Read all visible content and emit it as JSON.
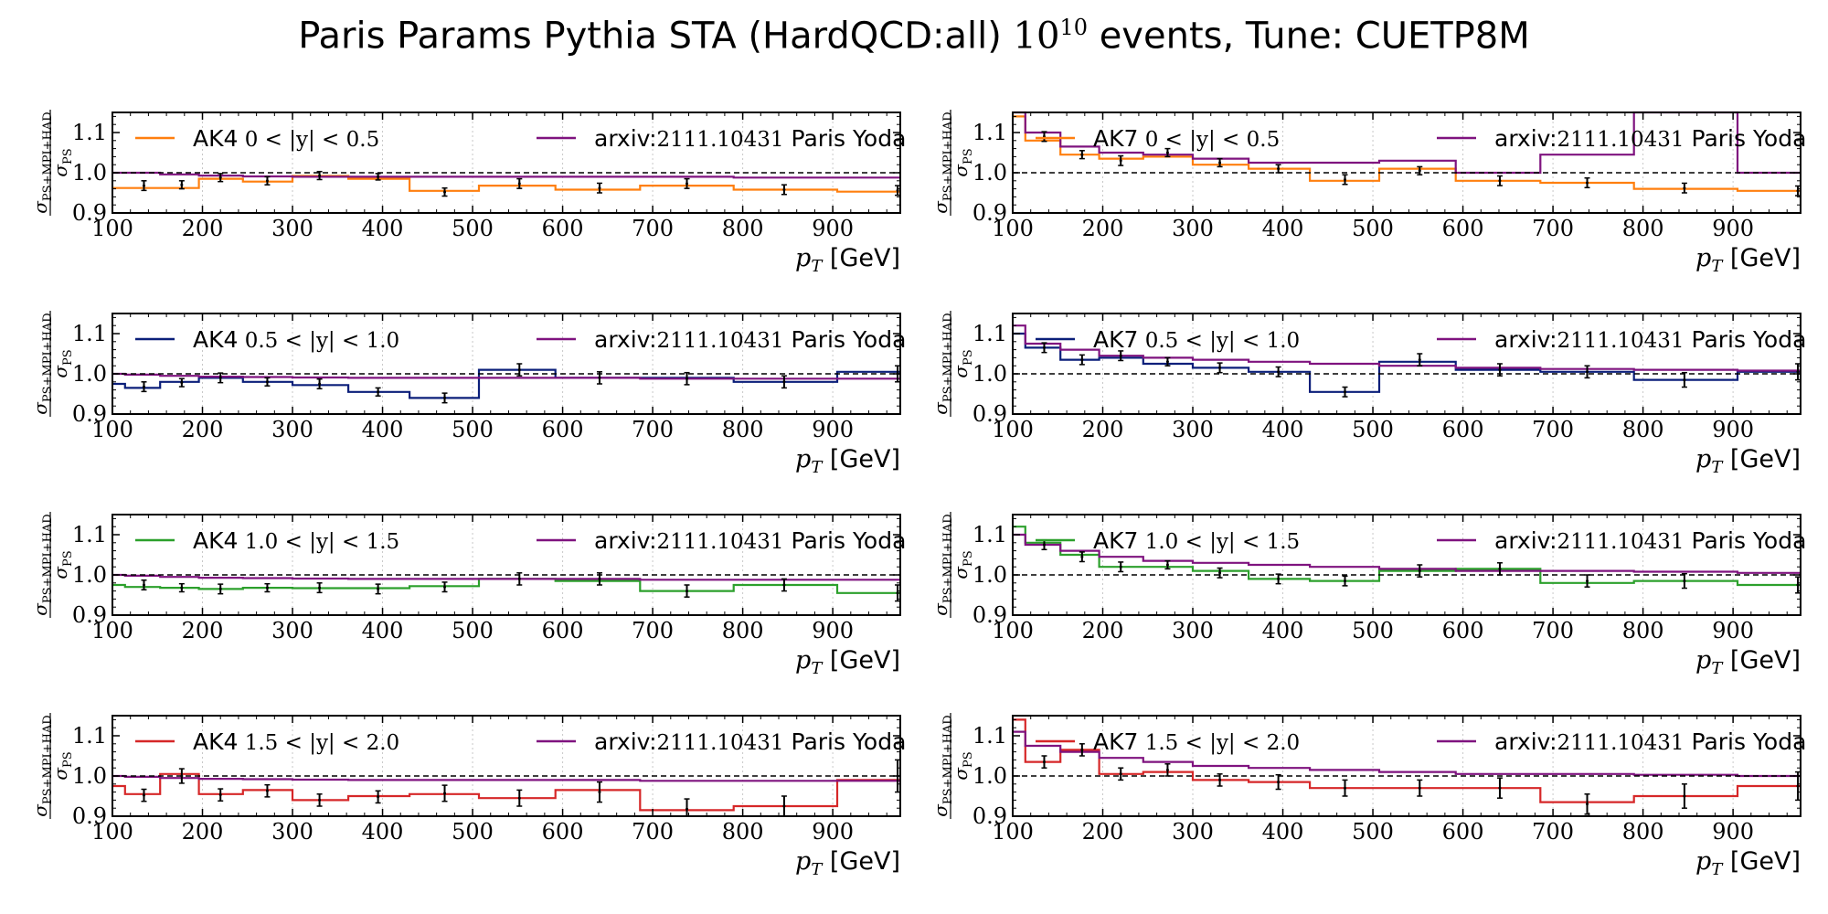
{
  "title": {
    "prefix": "Paris Params Pythia STA (HardQCD:all) ",
    "base": "10",
    "exponent": "10",
    "suffix": " events, Tune: CUETP8M"
  },
  "colors": {
    "yoda": "#7f137f",
    "y0": "#ff7f0e",
    "y1": "#0b1f7a",
    "y2": "#2ca02c",
    "y3": "#d62728",
    "errorbar": "#000000",
    "reference_line": "#000000"
  },
  "chart_data": [
    {
      "type": "line",
      "step": true,
      "xlim": [
        100,
        975
      ],
      "ylim": [
        0.9,
        1.15
      ],
      "ytick_labels": [
        "0.9",
        "1.0",
        "1.1"
      ],
      "xtick_labels": [
        "100",
        "200",
        "300",
        "400",
        "500",
        "600",
        "700",
        "800",
        "900"
      ],
      "xlabel": "p_T [GeV]",
      "ylabel": "σ_PS+MPI+HAD / σ_PS",
      "legend_left": {
        "label": "AK4",
        "range": "0 < |y| < 0.5"
      },
      "legend_right": {
        "label": "arxiv:",
        "number": "2111.10431",
        "rest": " Paris Yoda"
      },
      "reference": 1.0,
      "bin_edges": [
        100,
        153,
        196,
        245,
        300,
        362,
        430,
        507,
        592,
        686,
        790,
        905,
        975
      ],
      "series": [
        {
          "role": "main",
          "color_key": "y0",
          "values": [
            0.962,
            0.962,
            0.985,
            0.978,
            0.992,
            0.985,
            0.955,
            0.968,
            0.958,
            0.968,
            0.958,
            0.953
          ]
        },
        {
          "role": "yoda",
          "color_key": "yoda",
          "values": [
            1.0,
            0.996,
            0.993,
            0.991,
            0.99,
            0.99,
            0.99,
            0.99,
            0.99,
            0.99,
            0.988,
            0.988
          ]
        }
      ],
      "points": {
        "x": [
          135,
          177,
          220,
          272,
          330,
          395,
          469,
          552,
          641,
          738,
          846,
          972
        ],
        "y": [
          0.968,
          0.97,
          0.988,
          0.98,
          0.993,
          0.99,
          0.952,
          0.973,
          0.962,
          0.973,
          0.958,
          0.956
        ],
        "err": [
          0.012,
          0.01,
          0.01,
          0.01,
          0.01,
          0.008,
          0.01,
          0.012,
          0.012,
          0.012,
          0.012,
          0.012
        ]
      }
    },
    {
      "type": "line",
      "step": true,
      "xlim": [
        100,
        975
      ],
      "ylim": [
        0.9,
        1.15
      ],
      "ytick_labels": [
        "0.9",
        "1.0",
        "1.1"
      ],
      "xtick_labels": [
        "100",
        "200",
        "300",
        "400",
        "500",
        "600",
        "700",
        "800",
        "900"
      ],
      "xlabel": "p_T [GeV]",
      "ylabel": "σ_PS+MPI+HAD / σ_PS",
      "legend_left": {
        "label": "AK7",
        "range": "0 < |y| < 0.5"
      },
      "legend_right": {
        "label": "arxiv:",
        "number": "2111.10431",
        "rest": " Paris Yoda"
      },
      "reference": 1.0,
      "bin_edges": [
        100,
        114,
        153,
        196,
        245,
        300,
        362,
        430,
        507,
        592,
        686,
        790,
        905,
        975
      ],
      "series": [
        {
          "role": "main",
          "color_key": "y0",
          "values": [
            1.14,
            1.08,
            1.045,
            1.035,
            1.04,
            1.02,
            1.01,
            0.98,
            1.01,
            0.98,
            0.975,
            0.96,
            0.955
          ]
        },
        {
          "role": "yoda",
          "color_key": "yoda",
          "values": [
            1.15,
            1.1,
            1.065,
            1.05,
            1.045,
            1.035,
            1.025,
            1.025,
            1.03,
            1.0,
            1.045,
            1.15,
            1.0
          ]
        }
      ],
      "points": {
        "x": [
          135,
          177,
          220,
          272,
          330,
          395,
          469,
          552,
          641,
          738,
          846,
          972
        ],
        "y": [
          1.09,
          1.045,
          1.03,
          1.05,
          1.025,
          1.01,
          0.983,
          1.005,
          0.98,
          0.975,
          0.962,
          0.955
        ],
        "err": [
          0.012,
          0.01,
          0.012,
          0.01,
          0.01,
          0.01,
          0.012,
          0.01,
          0.012,
          0.012,
          0.012,
          0.012
        ]
      }
    },
    {
      "type": "line",
      "step": true,
      "xlim": [
        100,
        975
      ],
      "ylim": [
        0.9,
        1.15
      ],
      "ytick_labels": [
        "0.9",
        "1.0",
        "1.1"
      ],
      "xtick_labels": [
        "100",
        "200",
        "300",
        "400",
        "500",
        "600",
        "700",
        "800",
        "900"
      ],
      "xlabel": "p_T [GeV]",
      "ylabel": "σ_PS+MPI+HAD / σ_PS",
      "legend_left": {
        "label": "AK4",
        "range": "0.5 < |y| < 1.0"
      },
      "legend_right": {
        "label": "arxiv:",
        "number": "2111.10431",
        "rest": " Paris Yoda"
      },
      "reference": 1.0,
      "bin_edges": [
        100,
        114,
        153,
        196,
        245,
        300,
        362,
        430,
        507,
        592,
        686,
        790,
        905,
        975
      ],
      "series": [
        {
          "role": "main",
          "color_key": "y1",
          "values": [
            0.975,
            0.965,
            0.98,
            0.99,
            0.98,
            0.972,
            0.955,
            0.94,
            1.01,
            0.99,
            0.99,
            0.98,
            1.005
          ]
        },
        {
          "role": "yoda",
          "color_key": "yoda",
          "values": [
            1.0,
            0.998,
            0.995,
            0.993,
            0.992,
            0.991,
            0.99,
            0.99,
            0.99,
            0.99,
            0.988,
            0.988,
            0.988
          ]
        }
      ],
      "points": {
        "x": [
          135,
          177,
          220,
          272,
          330,
          395,
          469,
          552,
          641,
          738,
          846,
          972
        ],
        "y": [
          0.968,
          0.978,
          0.99,
          0.98,
          0.975,
          0.955,
          0.94,
          1.01,
          0.99,
          0.988,
          0.98,
          1.0
        ],
        "err": [
          0.012,
          0.01,
          0.012,
          0.01,
          0.012,
          0.01,
          0.012,
          0.015,
          0.015,
          0.015,
          0.015,
          0.02
        ]
      }
    },
    {
      "type": "line",
      "step": true,
      "xlim": [
        100,
        975
      ],
      "ylim": [
        0.9,
        1.15
      ],
      "ytick_labels": [
        "0.9",
        "1.0",
        "1.1"
      ],
      "xtick_labels": [
        "100",
        "200",
        "300",
        "400",
        "500",
        "600",
        "700",
        "800",
        "900"
      ],
      "xlabel": "p_T [GeV]",
      "ylabel": "σ_PS+MPI+HAD / σ_PS",
      "legend_left": {
        "label": "AK7",
        "range": "0.5 < |y| < 1.0"
      },
      "legend_right": {
        "label": "arxiv:",
        "number": "2111.10431",
        "rest": " Paris Yoda"
      },
      "reference": 1.0,
      "bin_edges": [
        100,
        114,
        153,
        196,
        245,
        300,
        362,
        430,
        507,
        592,
        686,
        790,
        905,
        975
      ],
      "series": [
        {
          "role": "main",
          "color_key": "y1",
          "values": [
            1.1,
            1.065,
            1.035,
            1.04,
            1.025,
            1.015,
            1.005,
            0.955,
            1.03,
            1.01,
            1.005,
            0.985,
            1.005
          ]
        },
        {
          "role": "yoda",
          "color_key": "yoda",
          "values": [
            1.12,
            1.075,
            1.06,
            1.045,
            1.04,
            1.035,
            1.03,
            1.025,
            1.02,
            1.015,
            1.012,
            1.01,
            1.008
          ]
        }
      ],
      "points": {
        "x": [
          135,
          177,
          220,
          272,
          330,
          395,
          469,
          552,
          641,
          738,
          846,
          972
        ],
        "y": [
          1.065,
          1.035,
          1.045,
          1.03,
          1.015,
          1.005,
          0.955,
          1.035,
          1.01,
          1.005,
          0.985,
          1.005
        ],
        "err": [
          0.012,
          0.012,
          0.012,
          0.01,
          0.012,
          0.012,
          0.012,
          0.015,
          0.015,
          0.015,
          0.018,
          0.02
        ]
      }
    },
    {
      "type": "line",
      "step": true,
      "xlim": [
        100,
        975
      ],
      "ylim": [
        0.9,
        1.15
      ],
      "ytick_labels": [
        "0.9",
        "1.0",
        "1.1"
      ],
      "xtick_labels": [
        "100",
        "200",
        "300",
        "400",
        "500",
        "600",
        "700",
        "800",
        "900"
      ],
      "xlabel": "p_T [GeV]",
      "ylabel": "σ_PS+MPI+HAD / σ_PS",
      "legend_left": {
        "label": "AK4",
        "range": "1.0 < |y| < 1.5"
      },
      "legend_right": {
        "label": "arxiv:",
        "number": "2111.10431",
        "rest": " Paris Yoda"
      },
      "reference": 1.0,
      "bin_edges": [
        100,
        114,
        153,
        196,
        245,
        300,
        362,
        430,
        507,
        592,
        686,
        790,
        905,
        975
      ],
      "series": [
        {
          "role": "main",
          "color_key": "y2",
          "values": [
            0.975,
            0.97,
            0.968,
            0.965,
            0.968,
            0.967,
            0.967,
            0.972,
            0.99,
            0.985,
            0.96,
            0.975,
            0.955
          ]
        },
        {
          "role": "yoda",
          "color_key": "yoda",
          "values": [
            1.0,
            0.998,
            0.995,
            0.993,
            0.992,
            0.991,
            0.99,
            0.99,
            0.99,
            0.99,
            0.988,
            0.988,
            0.988
          ]
        }
      ],
      "points": {
        "x": [
          135,
          177,
          220,
          272,
          330,
          395,
          469,
          552,
          641,
          738,
          846,
          972
        ],
        "y": [
          0.975,
          0.968,
          0.965,
          0.968,
          0.968,
          0.965,
          0.97,
          0.99,
          0.99,
          0.96,
          0.975,
          0.955
        ],
        "err": [
          0.012,
          0.01,
          0.012,
          0.01,
          0.012,
          0.012,
          0.012,
          0.015,
          0.015,
          0.015,
          0.015,
          0.02
        ]
      }
    },
    {
      "type": "line",
      "step": true,
      "xlim": [
        100,
        975
      ],
      "ylim": [
        0.9,
        1.15
      ],
      "ytick_labels": [
        "0.9",
        "1.0",
        "1.1"
      ],
      "xtick_labels": [
        "100",
        "200",
        "300",
        "400",
        "500",
        "600",
        "700",
        "800",
        "900"
      ],
      "xlabel": "p_T [GeV]",
      "ylabel": "σ_PS+MPI+HAD / σ_PS",
      "legend_left": {
        "label": "AK7",
        "range": "1.0 < |y| < 1.5"
      },
      "legend_right": {
        "label": "arxiv:",
        "number": "2111.10431",
        "rest": " Paris Yoda"
      },
      "reference": 1.0,
      "bin_edges": [
        100,
        114,
        153,
        196,
        245,
        300,
        362,
        430,
        507,
        592,
        686,
        790,
        905,
        975
      ],
      "series": [
        {
          "role": "main",
          "color_key": "y2",
          "values": [
            1.12,
            1.08,
            1.05,
            1.02,
            1.02,
            1.01,
            0.99,
            0.985,
            1.01,
            1.015,
            0.98,
            0.985,
            0.975
          ]
        },
        {
          "role": "yoda",
          "color_key": "yoda",
          "values": [
            1.1,
            1.075,
            1.06,
            1.045,
            1.035,
            1.03,
            1.025,
            1.02,
            1.015,
            1.01,
            1.01,
            1.008,
            1.005
          ]
        }
      ],
      "points": {
        "x": [
          135,
          177,
          220,
          272,
          330,
          395,
          469,
          552,
          641,
          738,
          846,
          972
        ],
        "y": [
          1.075,
          1.045,
          1.02,
          1.025,
          1.005,
          0.99,
          0.985,
          1.01,
          1.015,
          0.985,
          0.985,
          0.975
        ],
        "err": [
          0.012,
          0.012,
          0.012,
          0.01,
          0.012,
          0.012,
          0.012,
          0.015,
          0.015,
          0.015,
          0.018,
          0.02
        ]
      }
    },
    {
      "type": "line",
      "step": true,
      "xlim": [
        100,
        975
      ],
      "ylim": [
        0.9,
        1.15
      ],
      "ytick_labels": [
        "0.9",
        "1.0",
        "1.1"
      ],
      "xtick_labels": [
        "100",
        "200",
        "300",
        "400",
        "500",
        "600",
        "700",
        "800",
        "900"
      ],
      "xlabel": "p_T [GeV]",
      "ylabel": "σ_PS+MPI+HAD / σ_PS",
      "legend_left": {
        "label": "AK4",
        "range": "1.5 < |y| < 2.0"
      },
      "legend_right": {
        "label": "arxiv:",
        "number": "2111.10431",
        "rest": " Paris Yoda"
      },
      "reference": 1.0,
      "bin_edges": [
        100,
        114,
        153,
        196,
        245,
        300,
        362,
        430,
        507,
        592,
        686,
        790,
        905,
        975
      ],
      "series": [
        {
          "role": "main",
          "color_key": "y3",
          "values": [
            0.975,
            0.955,
            1.005,
            0.955,
            0.965,
            0.94,
            0.95,
            0.955,
            0.945,
            0.965,
            0.915,
            0.925,
            0.99
          ]
        },
        {
          "role": "yoda",
          "color_key": "yoda",
          "values": [
            1.0,
            0.998,
            0.995,
            0.993,
            0.992,
            0.991,
            0.99,
            0.99,
            0.99,
            0.99,
            0.988,
            0.988,
            0.988
          ]
        }
      ],
      "points": {
        "x": [
          135,
          177,
          220,
          272,
          330,
          395,
          469,
          552,
          641,
          738,
          846,
          972
        ],
        "y": [
          0.952,
          1.0,
          0.953,
          0.963,
          0.94,
          0.948,
          0.957,
          0.945,
          0.96,
          0.918,
          0.925,
          1.0
        ],
        "err": [
          0.015,
          0.018,
          0.015,
          0.015,
          0.015,
          0.015,
          0.02,
          0.02,
          0.025,
          0.025,
          0.025,
          0.04
        ]
      }
    },
    {
      "type": "line",
      "step": true,
      "xlim": [
        100,
        975
      ],
      "ylim": [
        0.9,
        1.15
      ],
      "ytick_labels": [
        "0.9",
        "1.0",
        "1.1"
      ],
      "xtick_labels": [
        "100",
        "200",
        "300",
        "400",
        "500",
        "600",
        "700",
        "800",
        "900"
      ],
      "xlabel": "p_T [GeV]",
      "ylabel": "σ_PS+MPI+HAD / σ_PS",
      "legend_left": {
        "label": "AK7",
        "range": "1.5 < |y| < 2.0"
      },
      "legend_right": {
        "label": "arxiv:",
        "number": "2111.10431",
        "rest": " Paris Yoda"
      },
      "reference": 1.0,
      "bin_edges": [
        100,
        114,
        153,
        196,
        245,
        300,
        362,
        430,
        507,
        592,
        686,
        790,
        905,
        975
      ],
      "series": [
        {
          "role": "main",
          "color_key": "y3",
          "values": [
            1.14,
            1.035,
            1.065,
            1.005,
            1.01,
            0.99,
            0.985,
            0.97,
            0.97,
            0.97,
            0.935,
            0.95,
            0.975
          ]
        },
        {
          "role": "yoda",
          "color_key": "yoda",
          "values": [
            1.11,
            1.075,
            1.06,
            1.045,
            1.035,
            1.025,
            1.02,
            1.015,
            1.01,
            1.005,
            1.005,
            1.003,
            1.0
          ]
        }
      ],
      "points": {
        "x": [
          135,
          177,
          220,
          272,
          330,
          395,
          469,
          552,
          641,
          738,
          846,
          972
        ],
        "y": [
          1.035,
          1.065,
          1.005,
          1.015,
          0.99,
          0.985,
          0.97,
          0.97,
          0.97,
          0.93,
          0.95,
          0.975
        ],
        "err": [
          0.015,
          0.015,
          0.015,
          0.015,
          0.015,
          0.018,
          0.02,
          0.02,
          0.025,
          0.025,
          0.03,
          0.035
        ]
      }
    }
  ]
}
